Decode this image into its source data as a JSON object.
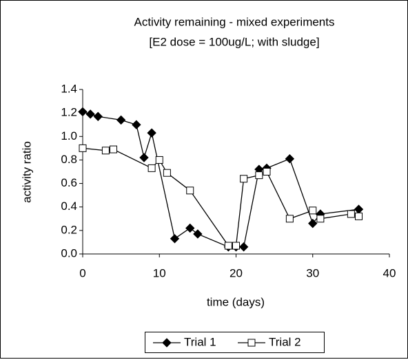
{
  "chart_data": {
    "type": "line",
    "title": "Activity remaining - mixed experiments",
    "subtitle": "[E2 dose = 100ug/L; with sludge]",
    "x_label": "time (days)",
    "y_label": "activity ratio",
    "xlim": [
      0,
      40
    ],
    "xticks": [
      0,
      10,
      20,
      30,
      40
    ],
    "ylim": [
      0,
      1.4
    ],
    "yticks": [
      {
        "value": 0,
        "label": "0.0"
      },
      {
        "value": 0.2,
        "label": "0.2"
      },
      {
        "value": 0.4,
        "label": "0.4"
      },
      {
        "value": 0.6,
        "label": "0.6"
      },
      {
        "value": 0.8,
        "label": "0.8"
      },
      {
        "value": 1,
        "label": "1.0"
      },
      {
        "value": 1.2,
        "label": "1.2"
      },
      {
        "value": 1.4,
        "label": "1.4"
      }
    ],
    "legend": "bottom",
    "series": [
      {
        "name": "Trial 1",
        "color": "#000000",
        "marker": "diamond",
        "x": [
          0,
          1,
          2,
          5,
          7,
          8,
          9,
          12,
          14,
          15,
          19,
          20,
          21,
          23,
          24,
          27,
          30,
          31,
          36
        ],
        "values": [
          1.21,
          1.19,
          1.17,
          1.14,
          1.1,
          0.82,
          1.03,
          0.13,
          0.22,
          0.17,
          0.06,
          0.06,
          0.06,
          0.72,
          0.73,
          0.81,
          0.26,
          0.34,
          0.38
        ]
      },
      {
        "name": "Trial 2",
        "color": "#000000",
        "marker": "square",
        "x": [
          0,
          3,
          4,
          9,
          10,
          11,
          14,
          19,
          20,
          21,
          23,
          24,
          27,
          30,
          31,
          35,
          36
        ],
        "values": [
          0.9,
          0.88,
          0.89,
          0.73,
          0.8,
          0.69,
          0.54,
          0.07,
          0.07,
          0.64,
          0.67,
          0.7,
          0.3,
          0.37,
          0.3,
          0.34,
          0.32
        ]
      }
    ]
  }
}
